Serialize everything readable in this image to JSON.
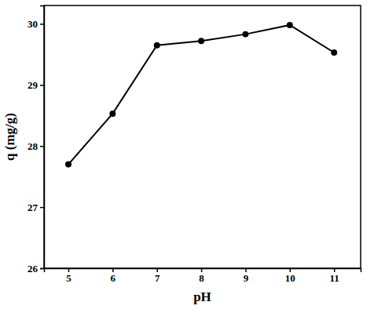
{
  "chart_data": {
    "type": "line",
    "x": [
      5,
      6,
      7,
      8,
      9,
      10,
      11
    ],
    "values": [
      27.7,
      28.53,
      29.65,
      29.72,
      29.83,
      29.98,
      29.53
    ],
    "color": "#000000",
    "marker": "circle",
    "line_style": "solid",
    "xlabel": "pH",
    "ylabel": "q (mg/g)",
    "xlim": [
      4.45,
      11.6
    ],
    "ylim": [
      26,
      30.3
    ],
    "xticks": [
      5,
      6,
      7,
      8,
      9,
      10,
      11
    ],
    "yticks": [
      26,
      27,
      28,
      29,
      30
    ],
    "grid": false
  }
}
